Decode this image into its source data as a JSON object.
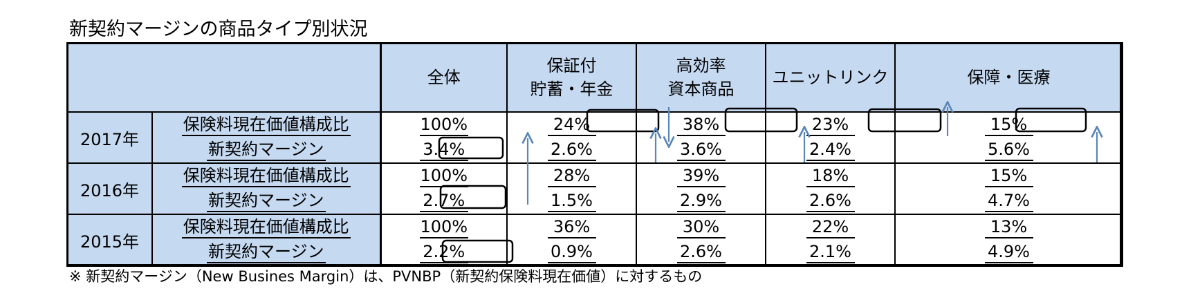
{
  "title": "新契約マージンの商品タイプ別状況",
  "footnote": "※ 新契約マージン（New Busines Margin）は、PVNBP（新契約保険料現在価値）に対するもの",
  "header": {
    "corner": "",
    "columns": [
      {
        "line1": "全体",
        "line2": ""
      },
      {
        "line1": "保証付",
        "line2": "貯蓄・年金"
      },
      {
        "line1": "高効率",
        "line2": "資本商品"
      },
      {
        "line1": "ユニットリンク",
        "line2": ""
      },
      {
        "line1": "保障・医療",
        "line2": ""
      }
    ]
  },
  "chart_data": {
    "type": "table",
    "columns": [
      "全体",
      "保証付 貯蓄・年金",
      "高効率 資本商品",
      "ユニットリンク",
      "保障・医療"
    ],
    "rows": [
      {
        "year": "2017年",
        "metrics": [
          {
            "label": "保険料現在価値構成比",
            "values": [
              "100%",
              "24%",
              "38%",
              "23%",
              "15%"
            ]
          },
          {
            "label": "新契約マージン",
            "values": [
              "3.4%",
              "2.6%",
              "3.6%",
              "2.4%",
              "5.6%"
            ]
          }
        ]
      },
      {
        "year": "2016年",
        "metrics": [
          {
            "label": "保険料現在価値構成比",
            "values": [
              "100%",
              "28%",
              "39%",
              "18%",
              "15%"
            ]
          },
          {
            "label": "新契約マージン",
            "values": [
              "2.7%",
              "1.5%",
              "2.9%",
              "2.6%",
              "4.7%"
            ]
          }
        ]
      },
      {
        "year": "2015年",
        "metrics": [
          {
            "label": "保険料現在価値構成比",
            "values": [
              "100%",
              "36%",
              "30%",
              "22%",
              "13%"
            ]
          },
          {
            "label": "新契約マージン",
            "values": [
              "2.2%",
              "0.9%",
              "2.6%",
              "2.1%",
              "4.9%"
            ]
          }
        ]
      }
    ]
  },
  "annotation_color": "#5a86b8",
  "highlight_box_color": "#000000"
}
